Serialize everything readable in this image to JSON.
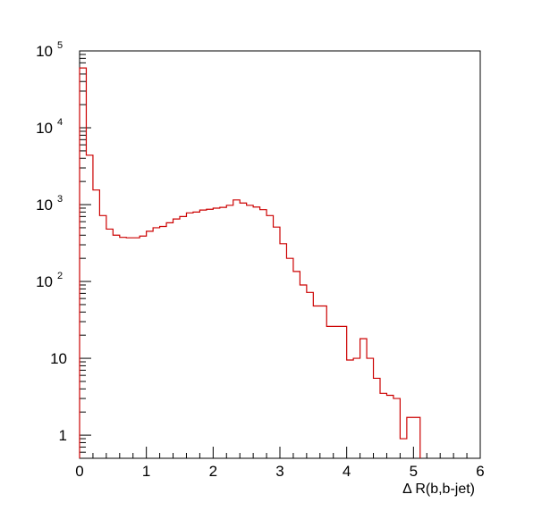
{
  "chart_data": {
    "type": "histogram",
    "xlabel": "Δ R(b,b-jet)",
    "xlim": [
      0,
      6
    ],
    "ylim": [
      0.5,
      100000
    ],
    "yscale": "log",
    "line_color": "#cc0000",
    "x_ticks": [
      "0",
      "1",
      "2",
      "3",
      "4",
      "5",
      "6"
    ],
    "y_ticks": [
      {
        "value": 1,
        "base": "1",
        "exp": ""
      },
      {
        "value": 10,
        "base": "10",
        "exp": ""
      },
      {
        "value": 100,
        "base": "10",
        "exp": "2"
      },
      {
        "value": 1000,
        "base": "10",
        "exp": "3"
      },
      {
        "value": 10000,
        "base": "10",
        "exp": "4"
      },
      {
        "value": 100000,
        "base": "10",
        "exp": "5"
      }
    ],
    "bin_width": 0.1,
    "bin_start": 0.0,
    "values": [
      60000,
      4400,
      1550,
      720,
      480,
      400,
      375,
      370,
      370,
      390,
      450,
      500,
      520,
      580,
      650,
      700,
      780,
      800,
      850,
      870,
      900,
      920,
      980,
      1150,
      1050,
      980,
      930,
      860,
      720,
      510,
      310,
      200,
      135,
      90,
      72,
      48,
      48,
      26,
      26,
      26,
      9.5,
      10,
      18,
      10,
      5.5,
      3.5,
      3.3,
      3.0,
      0.9,
      1.7,
      1.7
    ]
  }
}
